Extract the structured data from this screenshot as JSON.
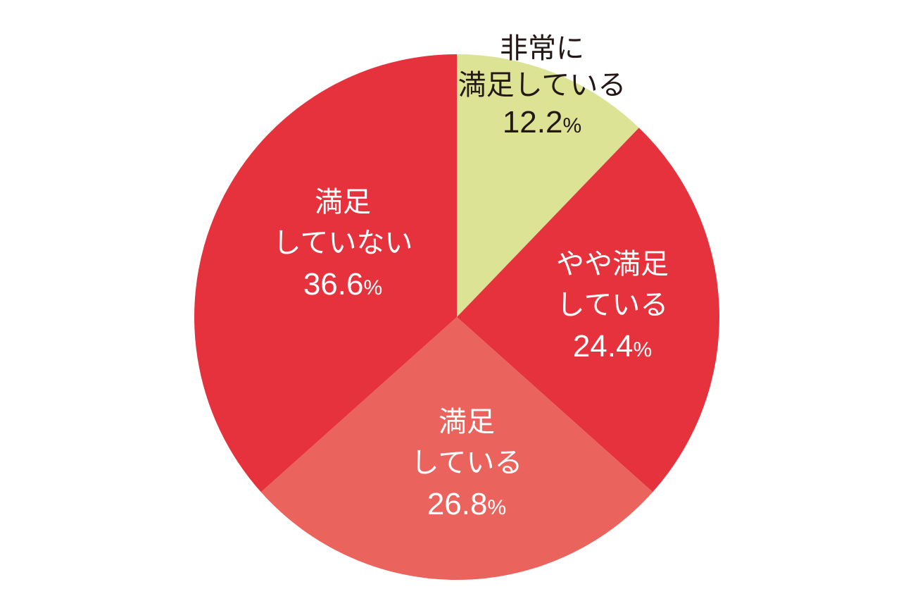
{
  "chart_data": {
    "type": "pie",
    "start_angle_deg": 0,
    "direction": "clockwise",
    "slices": [
      {
        "label_lines": [
          "非常に",
          "満足している"
        ],
        "value": 12.2,
        "value_text": "12.2",
        "unit": "%",
        "color": "#dce394",
        "text_color": "#231815"
      },
      {
        "label_lines": [
          "やや満足",
          "している"
        ],
        "value": 24.4,
        "value_text": "24.4",
        "unit": "%",
        "color": "#e5323c",
        "text_color": "#ffffff"
      },
      {
        "label_lines": [
          "満足",
          "している"
        ],
        "value": 26.8,
        "value_text": "26.8",
        "unit": "%",
        "color": "#eb635d",
        "text_color": "#ffffff"
      },
      {
        "label_lines": [
          "満足",
          "していない"
        ],
        "value": 36.6,
        "value_text": "36.6",
        "unit": "%",
        "color": "#e5323c",
        "text_color": "#ffffff"
      }
    ]
  }
}
